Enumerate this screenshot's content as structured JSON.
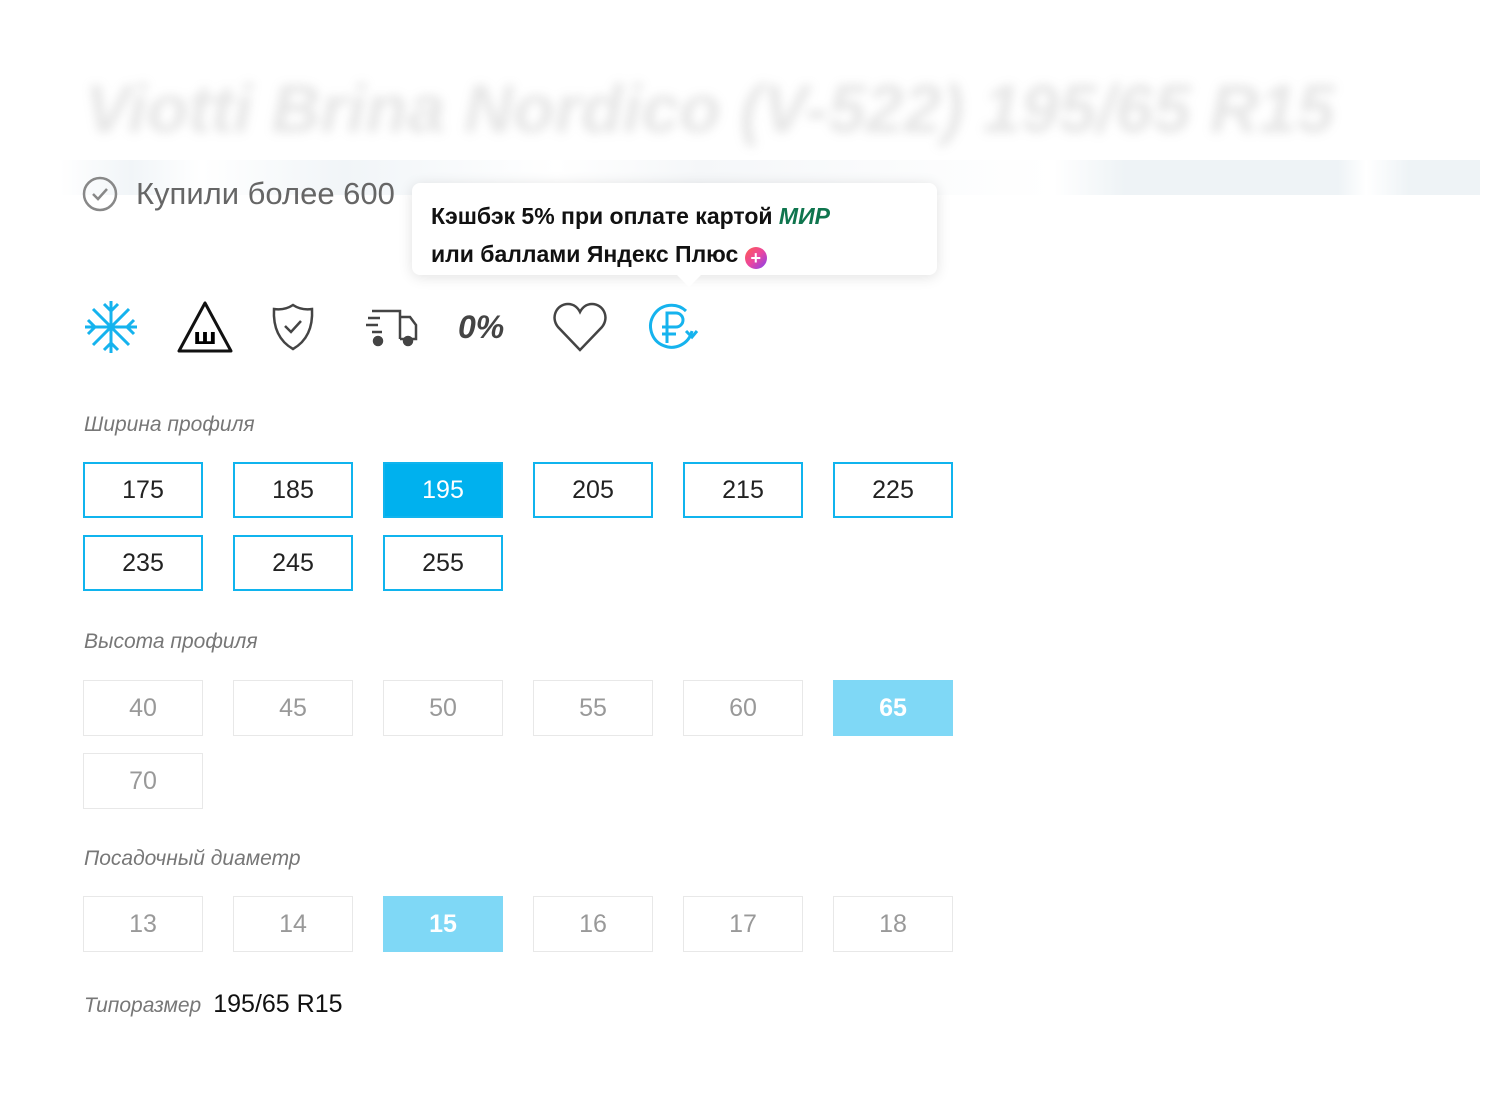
{
  "product": {
    "title": "Viotti Brina Nordico (V-522) 195/65 R15",
    "bought": "Купили более 600"
  },
  "tooltip": {
    "line1": "Кэшбэк 5% при оплате картой",
    "mir": "МИР",
    "line2": "или баллами Яндекс Плюс"
  },
  "features": [
    "snowflake-icon",
    "studded-tire-warning-icon",
    "shield-check-icon",
    "delivery-truck-icon",
    "zero-percent-installment-icon",
    "heart-icon",
    "ruble-cashback-icon"
  ],
  "features_text": {
    "zero": "0%"
  },
  "colors": {
    "accent": "#00b1ee",
    "selected_light": "#7fd8f6",
    "mir": "#0f754e"
  },
  "width": {
    "label": "Ширина профиля",
    "options": [
      "175",
      "185",
      "195",
      "205",
      "215",
      "225",
      "235",
      "245",
      "255"
    ],
    "selected": "195"
  },
  "height": {
    "label": "Высота профиля",
    "options": [
      "40",
      "45",
      "50",
      "55",
      "60",
      "65",
      "70"
    ],
    "selected": "65"
  },
  "diameter": {
    "label": "Посадочный диаметр",
    "options": [
      "13",
      "14",
      "15",
      "16",
      "17",
      "18"
    ],
    "selected": "15"
  },
  "size": {
    "label": "Типоразмер",
    "value": "195/65 R15"
  }
}
